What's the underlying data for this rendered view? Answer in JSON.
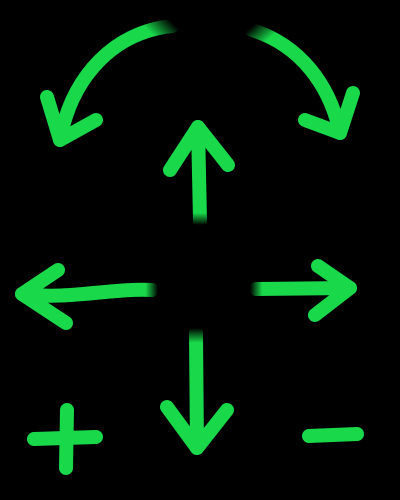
{
  "colors": {
    "background": "#000000",
    "stroke": "#19d84a"
  },
  "controls": [
    {
      "name": "rotate-counterclockwise-icon",
      "icon": "curved-arrow-left"
    },
    {
      "name": "rotate-clockwise-icon",
      "icon": "curved-arrow-right"
    },
    {
      "name": "arrow-up-icon",
      "icon": "arrow-up"
    },
    {
      "name": "arrow-left-icon",
      "icon": "arrow-left"
    },
    {
      "name": "arrow-right-icon",
      "icon": "arrow-right"
    },
    {
      "name": "arrow-down-icon",
      "icon": "arrow-down"
    },
    {
      "name": "zoom-in-icon",
      "icon": "plus"
    },
    {
      "name": "zoom-out-icon",
      "icon": "minus"
    }
  ]
}
